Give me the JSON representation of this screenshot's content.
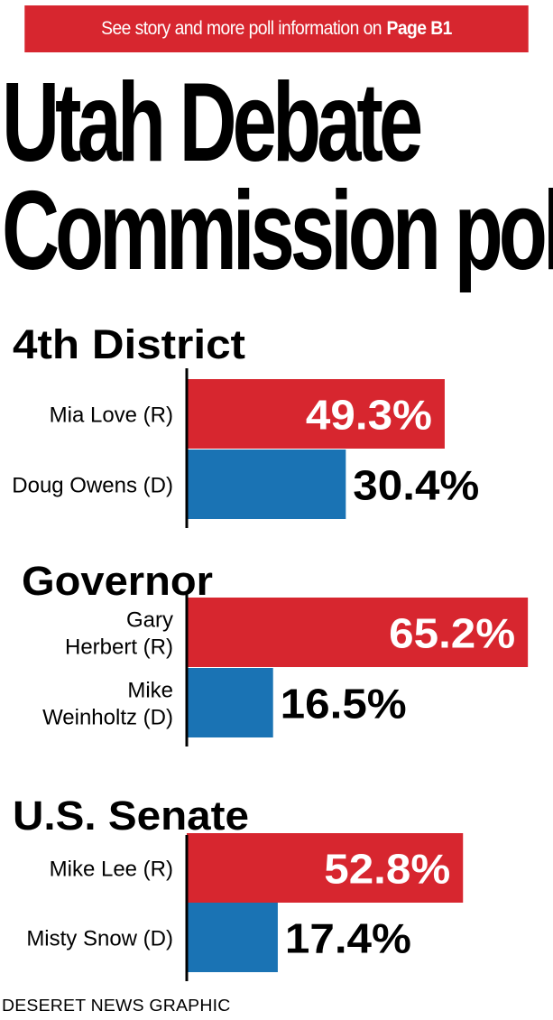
{
  "banner": {
    "text": "See story and more poll information on",
    "page_ref": "Page B1"
  },
  "title": {
    "line1": "Utah Debate",
    "line2": "Commission poll"
  },
  "credit": "DESERET NEWS GRAPHIC",
  "colors": {
    "republican": "#d7262f",
    "democrat": "#1a73b4",
    "banner": "#d7262f"
  },
  "chart_data": [
    {
      "type": "bar",
      "title": "4th District",
      "unit": "%",
      "bars": [
        {
          "label": [
            "Mia Love (R)"
          ],
          "value": 49.3,
          "display": "49.3%",
          "party": "R"
        },
        {
          "label": [
            "Doug Owens (D)"
          ],
          "value": 30.4,
          "display": "30.4%",
          "party": "D"
        }
      ]
    },
    {
      "type": "bar",
      "title": "Governor",
      "unit": "%",
      "bars": [
        {
          "label": [
            "Gary",
            "Herbert (R)"
          ],
          "value": 65.2,
          "display": "65.2%",
          "party": "R"
        },
        {
          "label": [
            "Mike",
            "Weinholtz (D)"
          ],
          "value": 16.5,
          "display": "16.5%",
          "party": "D"
        }
      ]
    },
    {
      "type": "bar",
      "title": "U.S. Senate",
      "unit": "%",
      "bars": [
        {
          "label": [
            "Mike Lee (R)"
          ],
          "value": 52.8,
          "display": "52.8%",
          "party": "R"
        },
        {
          "label": [
            "Misty Snow (D)"
          ],
          "value": 17.4,
          "display": "17.4%",
          "party": "D"
        }
      ]
    }
  ]
}
